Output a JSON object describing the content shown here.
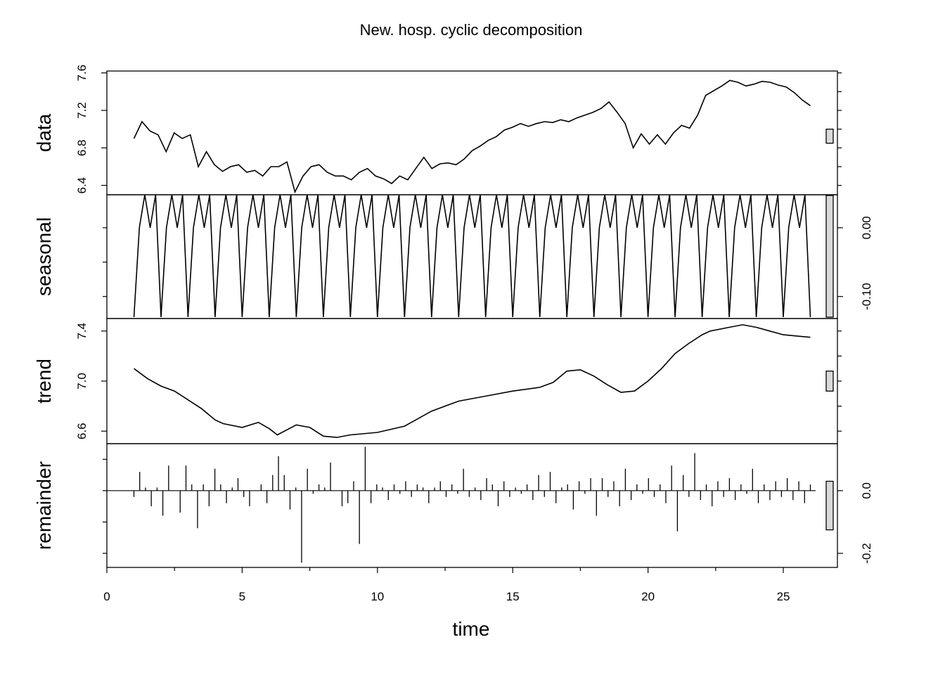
{
  "chart_data": {
    "type": "line",
    "title": "New. hosp. cyclic decomposition",
    "xlabel": "time",
    "x_range": [
      0,
      27
    ],
    "x_ticks": [
      0,
      5,
      10,
      15,
      20,
      25
    ],
    "x_start": 1,
    "x_step": 0.2,
    "panels": [
      {
        "name": "data",
        "ylabel": "data",
        "ylim": [
          6.3,
          7.62
        ],
        "ticks": [
          6.4,
          6.8,
          7.2,
          7.6
        ],
        "tick_side": "left",
        "scale_bar": [
          6.85,
          7.0
        ],
        "values": [
          6.9,
          7.08,
          6.98,
          6.94,
          6.76,
          6.96,
          6.9,
          6.94,
          6.6,
          6.76,
          6.62,
          6.55,
          6.6,
          6.62,
          6.54,
          6.56,
          6.5,
          6.6,
          6.6,
          6.65,
          6.33,
          6.5,
          6.6,
          6.62,
          6.54,
          6.5,
          6.5,
          6.46,
          6.54,
          6.58,
          6.5,
          6.47,
          6.42,
          6.5,
          6.46,
          6.58,
          6.7,
          6.58,
          6.63,
          6.64,
          6.62,
          6.68,
          6.77,
          6.82,
          6.88,
          6.92,
          6.99,
          7.02,
          7.06,
          7.03,
          7.06,
          7.08,
          7.07,
          7.1,
          7.08,
          7.12,
          7.15,
          7.18,
          7.22,
          7.29,
          7.18,
          7.06,
          6.8,
          6.95,
          6.84,
          6.94,
          6.84,
          6.96,
          7.04,
          7.01,
          7.15,
          7.36,
          7.41,
          7.46,
          7.52,
          7.5,
          7.46,
          7.48,
          7.51,
          7.5,
          7.47,
          7.45,
          7.39,
          7.31,
          7.25
        ],
        "series_note": "Line series values in data units, one point per x step"
      },
      {
        "name": "seasonal",
        "ylabel": "seasonal",
        "ylim": [
          -0.132,
          0.048
        ],
        "ticks": [
          0.0,
          -0.1
        ],
        "tick_labels": [
          "0.00",
          "-0.10"
        ],
        "tick_side": "right",
        "scale_bar": [
          -0.13,
          0.047
        ],
        "pattern": [
          -0.13,
          0.0,
          0.048,
          0.0,
          0.048
        ]
      },
      {
        "name": "trend",
        "ylabel": "trend",
        "ylim": [
          6.5,
          7.5
        ],
        "ticks": [
          6.6,
          7.0,
          7.4
        ],
        "tick_side": "left",
        "scale_bar": [
          6.92,
          7.08
        ],
        "points": [
          [
            1,
            7.1
          ],
          [
            1.5,
            7.02
          ],
          [
            2,
            6.96
          ],
          [
            2.5,
            6.92
          ],
          [
            3,
            6.85
          ],
          [
            3.5,
            6.78
          ],
          [
            4,
            6.69
          ],
          [
            4.3,
            6.66
          ],
          [
            5,
            6.63
          ],
          [
            5.6,
            6.67
          ],
          [
            6,
            6.62
          ],
          [
            6.3,
            6.57
          ],
          [
            7.0,
            6.65
          ],
          [
            7.5,
            6.63
          ],
          [
            8,
            6.56
          ],
          [
            8.5,
            6.55
          ],
          [
            9,
            6.57
          ],
          [
            10,
            6.59
          ],
          [
            11,
            6.64
          ],
          [
            11.5,
            6.7
          ],
          [
            12,
            6.76
          ],
          [
            13,
            6.84
          ],
          [
            14,
            6.88
          ],
          [
            15,
            6.92
          ],
          [
            16,
            6.95
          ],
          [
            16.5,
            6.99
          ],
          [
            17,
            7.08
          ],
          [
            17.5,
            7.09
          ],
          [
            18,
            7.04
          ],
          [
            18.5,
            6.97
          ],
          [
            19,
            6.91
          ],
          [
            19.5,
            6.92
          ],
          [
            20,
            7.0
          ],
          [
            20.5,
            7.1
          ],
          [
            21,
            7.22
          ],
          [
            21.5,
            7.3
          ],
          [
            22,
            7.37
          ],
          [
            22.3,
            7.4
          ],
          [
            23,
            7.43
          ],
          [
            23.5,
            7.45
          ],
          [
            24,
            7.43
          ],
          [
            24.5,
            7.4
          ],
          [
            25,
            7.37
          ],
          [
            26,
            7.35
          ]
        ]
      },
      {
        "name": "remainder",
        "ylabel": "remainder",
        "ylim": [
          -0.245,
          0.15
        ],
        "ticks": [
          0.0,
          -0.2
        ],
        "tick_labels": [
          "0.0",
          "-0.2"
        ],
        "tick_side": "right",
        "scale_bar": [
          -0.125,
          0.03
        ],
        "values": [
          -0.02,
          0.06,
          0.01,
          -0.05,
          0.01,
          -0.08,
          0.08,
          0.0,
          -0.07,
          0.08,
          0.02,
          -0.12,
          0.02,
          -0.05,
          0.07,
          0.02,
          -0.04,
          0.01,
          0.04,
          -0.02,
          -0.05,
          0.0,
          0.02,
          -0.04,
          0.05,
          0.11,
          0.05,
          -0.06,
          0.01,
          -0.23,
          0.07,
          -0.01,
          0.02,
          0.01,
          0.09,
          0.0,
          -0.05,
          -0.04,
          0.03,
          -0.17,
          0.14,
          -0.04,
          0.02,
          0.01,
          -0.03,
          0.02,
          -0.01,
          0.03,
          -0.02,
          0.02,
          0.01,
          -0.04,
          0.01,
          0.03,
          -0.02,
          0.02,
          -0.01,
          0.07,
          -0.02,
          0.01,
          -0.03,
          0.04,
          0.02,
          -0.05,
          0.03,
          -0.02,
          0.01,
          -0.01,
          0.02,
          -0.03,
          0.05,
          -0.02,
          0.06,
          -0.04,
          0.01,
          0.02,
          -0.06,
          0.03,
          -0.01,
          0.04,
          -0.08,
          0.04,
          -0.02,
          0.03,
          -0.05,
          0.07,
          -0.03,
          0.02,
          -0.01,
          0.04,
          -0.02,
          0.02,
          -0.04,
          0.08,
          -0.13,
          0.05,
          -0.02,
          0.12,
          -0.03,
          0.02,
          -0.05,
          0.03,
          -0.02,
          0.04,
          -0.03,
          0.02,
          -0.01,
          0.07,
          -0.04,
          0.02,
          -0.03,
          0.03,
          -0.02,
          0.04,
          -0.03,
          0.03,
          -0.04,
          0.02
        ],
        "baseline": 0.0
      }
    ]
  }
}
